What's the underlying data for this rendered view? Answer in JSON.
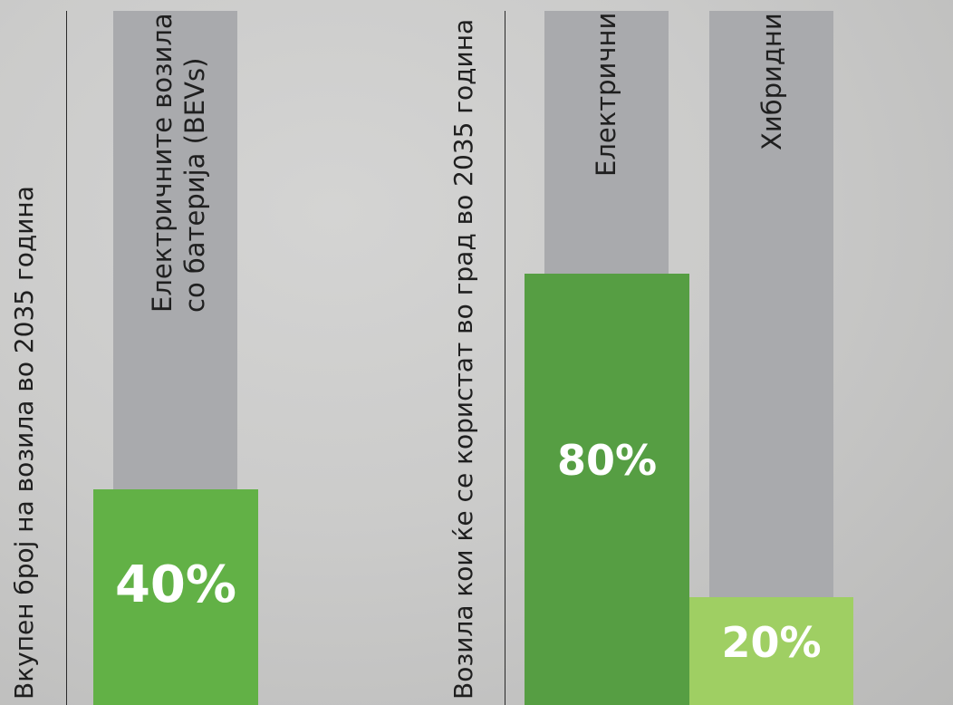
{
  "chart_data": [
    {
      "type": "bar",
      "ylabel": "Вкупен број на возила во 2035 година",
      "categories": [
        "Електричните возила\nсо батерија (BEVs)"
      ],
      "values": [
        40
      ],
      "value_labels": [
        "40%"
      ],
      "unit": "%",
      "ylim": [
        0,
        100
      ],
      "colors": [
        "#62b146"
      ],
      "background_column_color": "#a9aaad"
    },
    {
      "type": "bar",
      "ylabel": "Возила кои ќе се користат во град во 2035 година",
      "categories": [
        "Електрични",
        "Хибридни"
      ],
      "values": [
        80,
        20
      ],
      "value_labels": [
        "80%",
        "20%"
      ],
      "unit": "%",
      "ylim": [
        0,
        100
      ],
      "colors": [
        "#569e43",
        "#9fcf63"
      ],
      "background_column_color": "#a9aaad"
    }
  ]
}
